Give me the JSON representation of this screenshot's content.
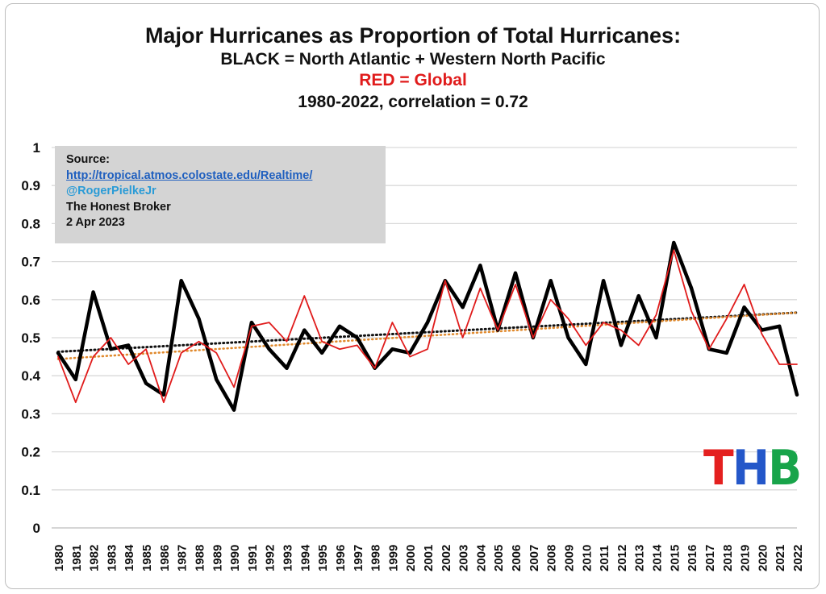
{
  "titles": {
    "line1": "Major Hurricanes as Proportion of Total Hurricanes:",
    "line2": "BLACK = North Atlantic + Western North Pacific",
    "line3": "RED = Global",
    "line4": "1980-2022, correlation = 0.72"
  },
  "source_box": {
    "label": "Source:",
    "link": "http://tropical.atmos.colostate.edu/Realtime/",
    "handle": "@RogerPielkeJr",
    "publisher": "The Honest Broker",
    "date": "2 Apr 2023"
  },
  "logo": {
    "t": "T",
    "h": "H",
    "b": "B"
  },
  "colors": {
    "black_series": "#000000",
    "red_series": "#e01b1b",
    "black_trend": "#111111",
    "red_trend": "#e08a2e",
    "logo_t": "#e4201f",
    "logo_h": "#2457c9",
    "logo_b": "#18a44a",
    "grid": "#d9d9d9"
  },
  "chart_data": {
    "type": "line",
    "x": [
      1980,
      1981,
      1982,
      1983,
      1984,
      1985,
      1986,
      1987,
      1988,
      1989,
      1990,
      1991,
      1992,
      1993,
      1994,
      1995,
      1996,
      1997,
      1998,
      1999,
      2000,
      2001,
      2002,
      2003,
      2004,
      2005,
      2006,
      2007,
      2008,
      2009,
      2010,
      2011,
      2012,
      2013,
      2014,
      2015,
      2016,
      2017,
      2018,
      2019,
      2020,
      2021,
      2022
    ],
    "x_ticks": [
      "1980",
      "1981",
      "1982",
      "1983",
      "1984",
      "1985",
      "1986",
      "1987",
      "1988",
      "1989",
      "1990",
      "1991",
      "1992",
      "1993",
      "1994",
      "1995",
      "1996",
      "1997",
      "1998",
      "1999",
      "2000",
      "2001",
      "2002",
      "2003",
      "2004",
      "2005",
      "2006",
      "2007",
      "2008",
      "2009",
      "2010",
      "2011",
      "2012",
      "2013",
      "2014",
      "2015",
      "2016",
      "2017",
      "2018",
      "2019",
      "2020",
      "2021",
      "2022"
    ],
    "y_ticks": [
      "0",
      "0.1",
      "0.2",
      "0.3",
      "0.4",
      "0.5",
      "0.6",
      "0.7",
      "0.8",
      "0.9",
      "1"
    ],
    "ylim": [
      0,
      1
    ],
    "grid": true,
    "series": [
      {
        "color": "#000000",
        "values": [
          0.46,
          0.39,
          0.62,
          0.47,
          0.48,
          0.38,
          0.35,
          0.65,
          0.55,
          0.39,
          0.31,
          0.54,
          0.47,
          0.42,
          0.52,
          0.46,
          0.53,
          0.5,
          0.42,
          0.47,
          0.46,
          0.54,
          0.65,
          0.58,
          0.69,
          0.52,
          0.67,
          0.5,
          0.65,
          0.5,
          0.43,
          0.65,
          0.48,
          0.61,
          0.5,
          0.75,
          0.63,
          0.47,
          0.46,
          0.58,
          0.52,
          0.53,
          0.35
        ]
      },
      {
        "color": "#e01b1b",
        "values": [
          0.45,
          0.33,
          0.45,
          0.5,
          0.43,
          0.47,
          0.33,
          0.46,
          0.49,
          0.46,
          0.37,
          0.53,
          0.54,
          0.49,
          0.61,
          0.49,
          0.47,
          0.48,
          0.42,
          0.54,
          0.45,
          0.47,
          0.65,
          0.5,
          0.63,
          0.52,
          0.64,
          0.5,
          0.6,
          0.55,
          0.48,
          0.54,
          0.52,
          0.48,
          0.56,
          0.73,
          0.57,
          0.47,
          0.55,
          0.64,
          0.51,
          0.43,
          0.43
        ]
      }
    ],
    "trendlines": [
      {
        "series": 0,
        "start": 0.463,
        "end": 0.566
      },
      {
        "series": 1,
        "start": 0.444,
        "end": 0.566
      }
    ]
  }
}
